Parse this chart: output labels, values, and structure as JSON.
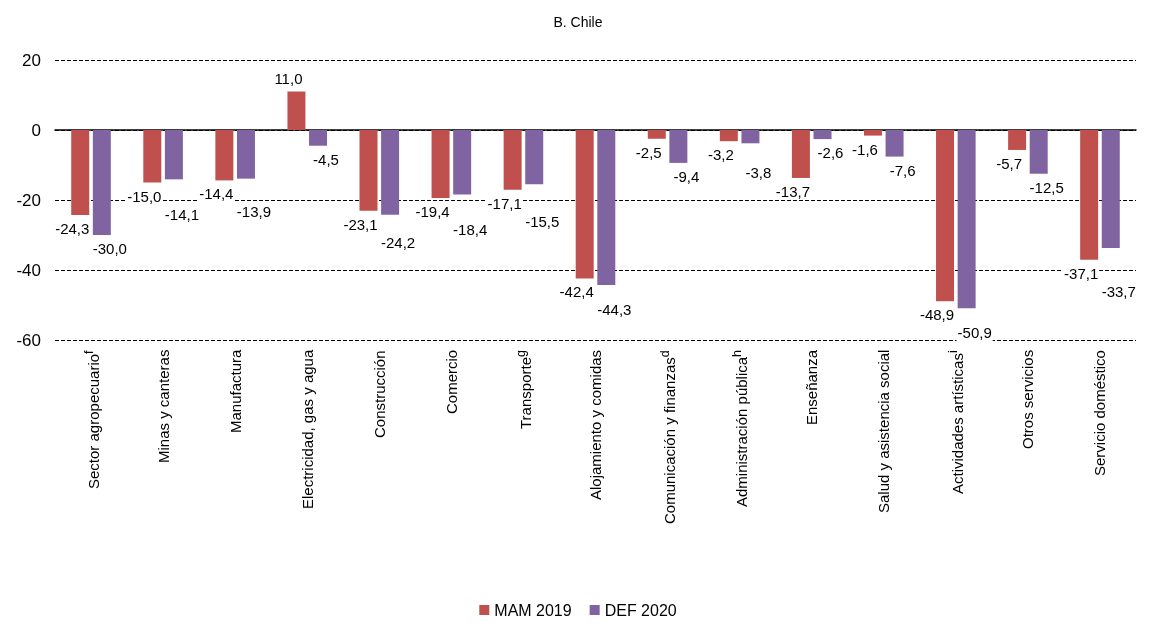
{
  "chart_data": {
    "type": "bar",
    "title": "B. Chile",
    "categories": [
      "Sector agropecuario$^{f}$",
      "Minas y canteras",
      "Manufactura",
      "Electricidad, gas y agua",
      "Construcción",
      "Comercio",
      "Transporte$^{g}$",
      "Alojamiento y comidas",
      "Comunicación y finanzas$^{d}$",
      "Administración pública$^{h}$",
      "Enseñanza",
      "Salud y asistencia social",
      "Actividades artísticas$^{i}$",
      "Otros servicios",
      "Servicio doméstico"
    ],
    "series": [
      {
        "name": "MAM 2019",
        "color": "#c0504d",
        "values": [
          -24.3,
          -15.0,
          -14.4,
          11.0,
          -23.1,
          -19.4,
          -17.1,
          -42.4,
          -2.5,
          -3.2,
          -13.7,
          -1.6,
          -48.9,
          -5.7,
          -37.1
        ],
        "value_labels": [
          "-24,3",
          "-15,0",
          "-14,4",
          "11,0",
          "-23,1",
          "-19,4",
          "-17,1",
          "-42,4",
          "-2,5",
          "-3,2",
          "-13,7",
          "-1,6",
          "-48,9",
          "-5,7",
          "-37,1"
        ]
      },
      {
        "name": "DEF 2020",
        "color": "#8064a2",
        "values": [
          -30.0,
          -14.1,
          -13.9,
          -4.5,
          -24.2,
          -18.4,
          -15.5,
          -44.3,
          -9.4,
          -3.8,
          -2.6,
          -7.6,
          -50.9,
          -12.5,
          -33.7
        ],
        "value_labels": [
          "-30,0",
          "-14,1",
          "-13,9",
          "-4,5",
          "-24,2",
          "-18,4",
          "-15,5",
          "-44,3",
          "-9,4",
          "-3,8",
          "-2,6",
          "-7,6",
          "-50,9",
          "-12,5",
          "-33,7"
        ]
      }
    ],
    "ylim": [
      -60,
      20
    ],
    "yticks": [
      -60,
      -40,
      -20,
      0,
      20
    ],
    "grid": "y",
    "legend": "bottom"
  }
}
